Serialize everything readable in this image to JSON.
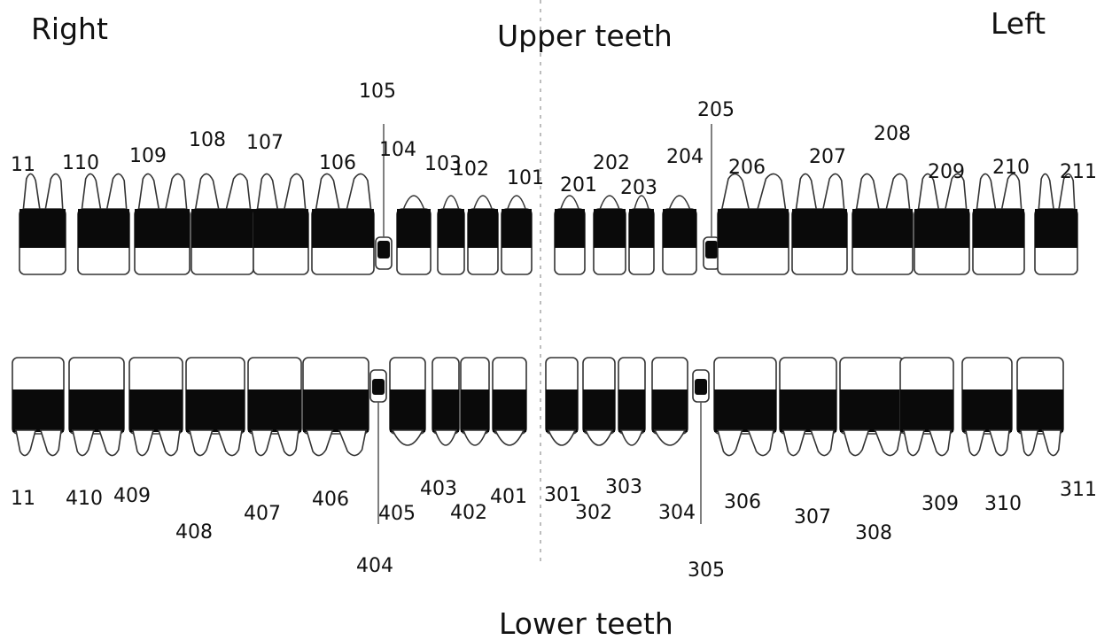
{
  "headings": {
    "side_right": "Right",
    "side_left": "Left",
    "upper": "Upper teeth",
    "lower": "Lower teeth"
  },
  "upper_teeth": [
    {
      "id": "11",
      "kind": "molar"
    },
    {
      "id": "110",
      "kind": "molar"
    },
    {
      "id": "109",
      "kind": "molar"
    },
    {
      "id": "108",
      "kind": "molar"
    },
    {
      "id": "107",
      "kind": "molar"
    },
    {
      "id": "106",
      "kind": "molar"
    },
    {
      "id": "105",
      "kind": "vestigial"
    },
    {
      "id": "104",
      "kind": "canine"
    },
    {
      "id": "103",
      "kind": "incisor"
    },
    {
      "id": "102",
      "kind": "incisor"
    },
    {
      "id": "101",
      "kind": "incisor"
    },
    {
      "id": "201",
      "kind": "incisor"
    },
    {
      "id": "202",
      "kind": "incisor"
    },
    {
      "id": "203",
      "kind": "incisor"
    },
    {
      "id": "204",
      "kind": "canine"
    },
    {
      "id": "205",
      "kind": "vestigial"
    },
    {
      "id": "206",
      "kind": "molar"
    },
    {
      "id": "207",
      "kind": "molar"
    },
    {
      "id": "208",
      "kind": "molar"
    },
    {
      "id": "209",
      "kind": "molar"
    },
    {
      "id": "210",
      "kind": "molar"
    },
    {
      "id": "211",
      "kind": "molar"
    }
  ],
  "lower_teeth": [
    {
      "id": "11",
      "kind": "molar"
    },
    {
      "id": "410",
      "kind": "molar"
    },
    {
      "id": "409",
      "kind": "molar"
    },
    {
      "id": "408",
      "kind": "molar"
    },
    {
      "id": "407",
      "kind": "molar"
    },
    {
      "id": "406",
      "kind": "molar"
    },
    {
      "id": "405",
      "kind": "vestigial"
    },
    {
      "id": "404",
      "kind": "canine"
    },
    {
      "id": "403",
      "kind": "incisor"
    },
    {
      "id": "402",
      "kind": "incisor"
    },
    {
      "id": "401",
      "kind": "incisor"
    },
    {
      "id": "301",
      "kind": "incisor"
    },
    {
      "id": "302",
      "kind": "incisor"
    },
    {
      "id": "303",
      "kind": "incisor"
    },
    {
      "id": "304",
      "kind": "canine"
    },
    {
      "id": "305",
      "kind": "vestigial"
    },
    {
      "id": "306",
      "kind": "molar"
    },
    {
      "id": "307",
      "kind": "molar"
    },
    {
      "id": "308",
      "kind": "molar"
    },
    {
      "id": "309",
      "kind": "molar"
    },
    {
      "id": "310",
      "kind": "molar"
    },
    {
      "id": "311",
      "kind": "molar"
    }
  ],
  "colors": {
    "tooth_band": "#0a0a0a",
    "outline": "#333333",
    "midline": "#bdbdbd"
  }
}
